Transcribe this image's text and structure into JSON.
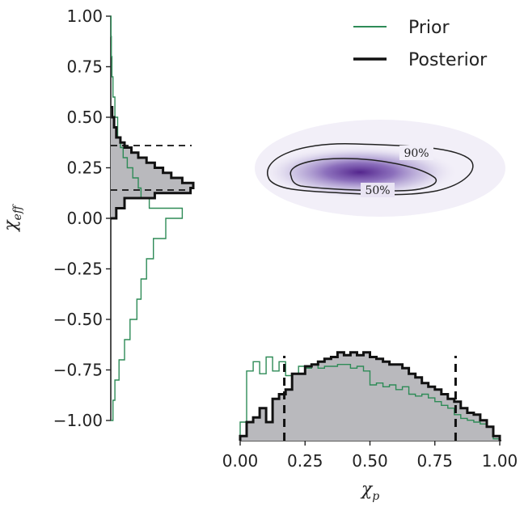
{
  "chart_data": [
    {
      "panel": "left-marginal",
      "type": "histogram",
      "orientation": "horizontal",
      "ylabel": "χeff",
      "ylabel_main": "χ",
      "ylabel_sub": "eff",
      "ylim": [
        -1.0,
        1.0
      ],
      "yticks": [
        "1.00",
        "0.75",
        "0.50",
        "0.25",
        "0.00",
        "−0.25",
        "−0.50",
        "−0.75",
        "−1.00"
      ],
      "series": [
        {
          "name": "Prior",
          "color": "#2e8b57",
          "bins": [
            -1.0,
            -0.9,
            -0.8,
            -0.7,
            -0.6,
            -0.5,
            -0.4,
            -0.3,
            -0.2,
            -0.1,
            0.0,
            0.05,
            0.1,
            0.15,
            0.2,
            0.25,
            0.3,
            0.35,
            0.4,
            0.5,
            0.6,
            0.7,
            0.8,
            0.9,
            1.0
          ],
          "density": [
            0.08,
            0.15,
            0.3,
            0.5,
            0.7,
            0.95,
            1.1,
            1.3,
            1.55,
            2.0,
            2.6,
            1.4,
            1.1,
            1.0,
            0.8,
            0.6,
            0.45,
            0.35,
            0.25,
            0.15,
            0.08,
            0.04,
            0.02,
            0.01
          ]
        },
        {
          "name": "Posterior",
          "color": "#111111",
          "fill": "#b9b9bd",
          "bins": [
            0.0,
            0.05,
            0.1,
            0.125,
            0.15,
            0.175,
            0.2,
            0.225,
            0.25,
            0.275,
            0.3,
            0.325,
            0.35,
            0.375,
            0.4,
            0.45,
            0.5,
            0.55
          ],
          "density": [
            0.2,
            0.5,
            1.6,
            2.9,
            3.0,
            2.6,
            2.2,
            1.9,
            1.6,
            1.3,
            1.0,
            0.75,
            0.5,
            0.35,
            0.2,
            0.12,
            0.05
          ]
        }
      ],
      "credible_interval": [
        0.14,
        0.36
      ]
    },
    {
      "panel": "joint-density",
      "type": "contour",
      "xlim": [
        0.0,
        1.0
      ],
      "ylim": [
        -1.0,
        1.0
      ],
      "contour_labels": [
        "90%",
        "50%"
      ],
      "cmap_color": "#4b1a87"
    },
    {
      "panel": "bottom-marginal",
      "type": "histogram",
      "xlabel": "χp",
      "xlabel_main": "χ",
      "xlabel_sub": "p",
      "xlim": [
        0.0,
        1.0
      ],
      "xticks": [
        "0.00",
        "0.25",
        "0.50",
        "0.75",
        "1.00"
      ],
      "series": [
        {
          "name": "Prior",
          "color": "#2e8b57",
          "bins": [
            0.0,
            0.025,
            0.05,
            0.075,
            0.1,
            0.125,
            0.15,
            0.175,
            0.2,
            0.225,
            0.25,
            0.275,
            0.3,
            0.325,
            0.35,
            0.375,
            0.4,
            0.425,
            0.45,
            0.475,
            0.5,
            0.525,
            0.55,
            0.575,
            0.6,
            0.625,
            0.65,
            0.675,
            0.7,
            0.725,
            0.75,
            0.775,
            0.8,
            0.825,
            0.85,
            0.875,
            0.9,
            0.925,
            0.95,
            0.975,
            1.0
          ],
          "density": [
            0.2,
            0.75,
            0.85,
            0.72,
            0.9,
            0.75,
            0.85,
            0.7,
            0.72,
            0.8,
            0.78,
            0.82,
            0.78,
            0.8,
            0.8,
            0.82,
            0.82,
            0.78,
            0.8,
            0.75,
            0.6,
            0.62,
            0.58,
            0.6,
            0.55,
            0.58,
            0.5,
            0.48,
            0.5,
            0.46,
            0.42,
            0.38,
            0.35,
            0.28,
            0.24,
            0.22,
            0.2,
            0.18,
            0.15,
            0.02
          ]
        },
        {
          "name": "Posterior",
          "color": "#111111",
          "fill": "#b9b9bd",
          "bins": [
            0.0,
            0.025,
            0.05,
            0.075,
            0.1,
            0.125,
            0.15,
            0.175,
            0.2,
            0.225,
            0.25,
            0.275,
            0.3,
            0.325,
            0.35,
            0.375,
            0.4,
            0.425,
            0.45,
            0.475,
            0.5,
            0.525,
            0.55,
            0.575,
            0.6,
            0.625,
            0.65,
            0.675,
            0.7,
            0.725,
            0.75,
            0.775,
            0.8,
            0.825,
            0.85,
            0.875,
            0.9,
            0.925,
            0.95,
            0.975,
            1.0
          ],
          "density": [
            0.05,
            0.2,
            0.25,
            0.35,
            0.2,
            0.45,
            0.5,
            0.55,
            0.72,
            0.72,
            0.8,
            0.82,
            0.85,
            0.88,
            0.9,
            0.95,
            0.92,
            0.95,
            0.92,
            0.95,
            0.9,
            0.88,
            0.85,
            0.82,
            0.82,
            0.78,
            0.72,
            0.68,
            0.62,
            0.58,
            0.55,
            0.5,
            0.45,
            0.42,
            0.35,
            0.3,
            0.28,
            0.22,
            0.15,
            0.05
          ]
        }
      ],
      "credible_interval": [
        0.17,
        0.83
      ]
    }
  ],
  "legend": {
    "placement": "top-right",
    "items": [
      {
        "label": "Prior",
        "color": "#2e8b57"
      },
      {
        "label": "Posterior",
        "color": "#111111"
      }
    ]
  }
}
